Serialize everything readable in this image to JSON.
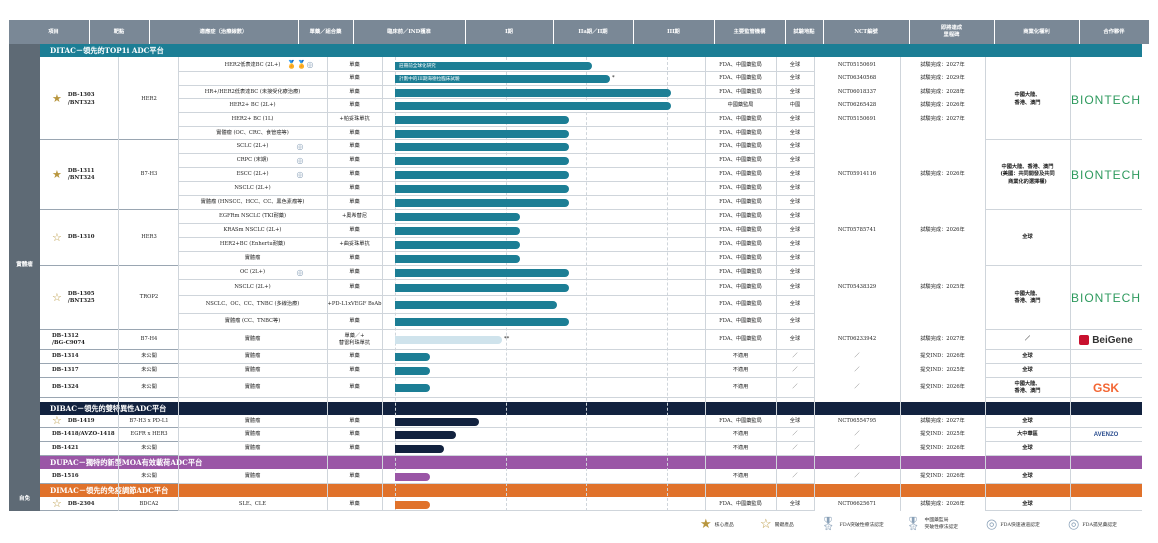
{
  "header": [
    "項目",
    "靶點",
    "適應症（治療線數）",
    "單藥／組合藥",
    "臨床前／IND獲准",
    "I期",
    "IIa期／II期",
    "III期",
    "主要監管機構",
    "試驗地點",
    "NCT編號",
    "即將達成\n里程碑",
    "商業化權利",
    "合作夥伴"
  ],
  "side_labels": [
    "實體瘤",
    "自免"
  ],
  "sections": [
    {
      "title": "DITAC－領先的TOP1i ADC平台",
      "color": "#1c7e95"
    },
    {
      "title": "DIBAC－領先的雙特異性ADC平台",
      "color": "#12223f"
    },
    {
      "title": "DUPAC－獨特的新型MOA有效載荷ADC平台",
      "color": "#9a56a6"
    },
    {
      "title": "DIMAC－領先的免疫調節ADC平台",
      "color": "#e0722b"
    }
  ],
  "rows": [
    {
      "ind": "HER2低表達BC (2L+)",
      "reg": "單藥",
      "bar": "註冊前全球化研究",
      "mark": "",
      "auth": "FDA、中國藥監局",
      "site": "全球",
      "nct": "NCT05150691",
      "ms": "試驗完成：2027年",
      "badges": "🏅🏅◎"
    },
    {
      "ind": "",
      "reg": "單藥",
      "bar": "計劃中的III期海德拉臨床試驗",
      "mark": "*",
      "auth": "FDA、中國藥監局",
      "site": "全球",
      "nct": "NCT06340568",
      "ms": "試驗完成：2029年",
      "badges": ""
    },
    {
      "ind": "HR+/HER2低表達BC (未接受化療治療)",
      "reg": "單藥",
      "bar": "",
      "mark": "",
      "auth": "FDA、中國藥監局",
      "site": "全球",
      "nct": "NCT06018337",
      "ms": "試驗完成：2028年",
      "badges": ""
    },
    {
      "ind": "HER2+ BC (2L+)",
      "reg": "單藥",
      "bar": "",
      "mark": "",
      "auth": "中國藥監局",
      "site": "中國",
      "nct": "NCT06265428",
      "ms": "試驗完成：2026年",
      "badges": ""
    },
    {
      "ind": "HER2+ BC (1L)",
      "reg": "+帕妥珠單抗",
      "bar": "",
      "mark": "",
      "auth": "FDA、中國藥監局",
      "site": "全球",
      "nct": "NCT05150691",
      "ms": "試驗完成：2027年",
      "badges": ""
    },
    {
      "ind": "實體瘤 (OC、CRC、食管癌等)",
      "reg": "單藥",
      "bar": "",
      "mark": "",
      "auth": "FDA、中國藥監局",
      "site": "全球",
      "nct": "",
      "ms": "",
      "badges": ""
    },
    {
      "ind": "SCLC (2L+)",
      "reg": "單藥",
      "bar": "",
      "mark": "",
      "auth": "FDA、中國藥監局",
      "site": "全球",
      "nct": "",
      "ms": "",
      "badges": "◎"
    },
    {
      "ind": "CRPC (末期)",
      "reg": "單藥",
      "bar": "",
      "mark": "",
      "auth": "FDA、中國藥監局",
      "site": "全球",
      "nct": "",
      "ms": "",
      "badges": "◎"
    },
    {
      "ind": "ESCC (2L+)",
      "reg": "單藥",
      "bar": "",
      "mark": "",
      "auth": "FDA、中國藥監局",
      "site": "全球",
      "nct": "NCT05914116",
      "ms": "試驗完成：2026年",
      "badges": "◎"
    },
    {
      "ind": "NSCLC (2L+)",
      "reg": "單藥",
      "bar": "",
      "mark": "",
      "auth": "FDA、中國藥監局",
      "site": "全球",
      "nct": "",
      "ms": "",
      "badges": ""
    },
    {
      "ind": "實體瘤 (HNSCC、HCC、CC、黑色素瘤等)",
      "reg": "單藥",
      "bar": "",
      "mark": "",
      "auth": "FDA、中國藥監局",
      "site": "全球",
      "nct": "",
      "ms": "",
      "badges": ""
    },
    {
      "ind": "EGFRm NSCLC (TKI耐藥)",
      "reg": "+奧希替尼",
      "bar": "",
      "mark": "",
      "auth": "FDA、中國藥監局",
      "site": "全球",
      "nct": "",
      "ms": "",
      "badges": ""
    },
    {
      "ind": "KRASm NSCLC (2L+)",
      "reg": "單藥",
      "bar": "",
      "mark": "",
      "auth": "FDA、中國藥監局",
      "site": "全球",
      "nct": "NCT05785741",
      "ms": "試驗完成：2026年",
      "badges": ""
    },
    {
      "ind": "HER2+BC (Enhertu耐藥)",
      "reg": "+曲妥珠單抗",
      "bar": "",
      "mark": "",
      "auth": "FDA、中國藥監局",
      "site": "全球",
      "nct": "",
      "ms": "",
      "badges": ""
    },
    {
      "ind": "實體瘤",
      "reg": "單藥",
      "bar": "",
      "mark": "",
      "auth": "FDA、中國藥監局",
      "site": "全球",
      "nct": "",
      "ms": "",
      "badges": ""
    },
    {
      "ind": "OC (2L+)",
      "reg": "單藥",
      "bar": "",
      "mark": "",
      "auth": "FDA、中國藥監局",
      "site": "全球",
      "nct": "",
      "ms": "",
      "badges": "◎"
    },
    {
      "ind": "NSCLC (2L+)",
      "reg": "單藥",
      "bar": "",
      "mark": "",
      "auth": "FDA、中國藥監局",
      "site": "全球",
      "nct": "NCT05438329",
      "ms": "試驗完成：2025年",
      "badges": ""
    },
    {
      "ind": "NSCLC、OC、CC、TNBC (多線治療)",
      "reg": "+PD-L1xVEGF BsAb",
      "bar": "",
      "mark": "",
      "auth": "FDA、中國藥監局",
      "site": "全球",
      "nct": "",
      "ms": "",
      "badges": ""
    },
    {
      "ind": "實體瘤 (CC、TNBC等)",
      "reg": "單藥",
      "bar": "",
      "mark": "",
      "auth": "FDA、中國藥監局",
      "site": "全球",
      "nct": "",
      "ms": "",
      "badges": ""
    },
    {
      "ind": "實體瘤",
      "reg": "單藥／+\n替雷利珠單抗",
      "bar": "",
      "mark": "**",
      "auth": "FDA、中國藥監局",
      "site": "全球",
      "nct": "NCT06233942",
      "ms": "試驗完成：2027年",
      "badges": ""
    },
    {
      "ind": "實體瘤",
      "reg": "單藥",
      "bar": "",
      "mark": "",
      "auth": "不適用",
      "site": "／",
      "nct": "／",
      "ms": "提交IND：2026年",
      "badges": ""
    },
    {
      "ind": "實體瘤",
      "reg": "單藥",
      "bar": "",
      "mark": "",
      "auth": "不適用",
      "site": "／",
      "nct": "／",
      "ms": "提交IND：2025年",
      "badges": ""
    },
    {
      "ind": "實體瘤",
      "reg": "單藥",
      "bar": "",
      "mark": "",
      "auth": "不適用",
      "site": "／",
      "nct": "／",
      "ms": "提交IND：2026年",
      "badges": ""
    },
    {
      "ind": "實體瘤",
      "reg": "單藥",
      "bar": "",
      "mark": "",
      "auth": "FDA、中國藥監局",
      "site": "全球",
      "nct": "NCT06554795",
      "ms": "試驗完成：2027年",
      "badges": ""
    },
    {
      "ind": "實體瘤",
      "reg": "單藥",
      "bar": "",
      "mark": "",
      "auth": "不適用",
      "site": "／",
      "nct": "／",
      "ms": "提交IND：2025年",
      "badges": ""
    },
    {
      "ind": "實體瘤",
      "reg": "單藥",
      "bar": "",
      "mark": "",
      "auth": "不適用",
      "site": "／",
      "nct": "／",
      "ms": "提交IND：2026年",
      "badges": ""
    },
    {
      "ind": "實體瘤",
      "reg": "單藥",
      "bar": "",
      "mark": "",
      "auth": "不適用",
      "site": "／",
      "nct": "／",
      "ms": "提交IND：2026年",
      "badges": ""
    },
    {
      "ind": "SLE、CLE",
      "reg": "單藥",
      "bar": "",
      "mark": "",
      "auth": "FDA、中國藥監局",
      "site": "全球",
      "nct": "NCT06625671",
      "ms": "試驗完成：2026年",
      "badges": ""
    }
  ],
  "progress": [
    {
      "phase": "I期-IIa期",
      "fill": 0.68,
      "color": "#1c7e95"
    },
    {
      "phase": "I期-IIa期",
      "fill": 0.74,
      "color": "#1c7e95"
    },
    {
      "phase": "III期",
      "fill": 0.95,
      "color": "#1c7e95"
    },
    {
      "phase": "III期",
      "fill": 0.95,
      "color": "#1c7e95"
    },
    {
      "phase": "IIa期",
      "fill": 0.6,
      "color": "#1c7e95"
    },
    {
      "phase": "IIa期",
      "fill": 0.6,
      "color": "#1c7e95"
    },
    {
      "phase": "IIa期",
      "fill": 0.6,
      "color": "#1c7e95"
    },
    {
      "phase": "IIa期",
      "fill": 0.6,
      "color": "#1c7e95"
    },
    {
      "phase": "IIa期",
      "fill": 0.6,
      "color": "#1c7e95"
    },
    {
      "phase": "IIa期",
      "fill": 0.6,
      "color": "#1c7e95"
    },
    {
      "phase": "IIa期",
      "fill": 0.6,
      "color": "#1c7e95"
    },
    {
      "phase": "I期",
      "fill": 0.43,
      "color": "#1c7e95"
    },
    {
      "phase": "I期",
      "fill": 0.43,
      "color": "#1c7e95"
    },
    {
      "phase": "I期",
      "fill": 0.43,
      "color": "#1c7e95"
    },
    {
      "phase": "I期",
      "fill": 0.43,
      "color": "#1c7e95"
    },
    {
      "phase": "IIa期",
      "fill": 0.6,
      "color": "#1c7e95"
    },
    {
      "phase": "IIa期",
      "fill": 0.6,
      "color": "#1c7e95"
    },
    {
      "phase": "I期",
      "fill": 0.56,
      "color": "#1c7e95"
    },
    {
      "phase": "IIa期",
      "fill": 0.6,
      "color": "#1c7e95"
    },
    {
      "phase": "I期",
      "fill": 0.37,
      "color": "#cfe3ec"
    },
    {
      "phase": "臨床前",
      "fill": 0.12,
      "color": "#1c7e95"
    },
    {
      "phase": "臨床前",
      "fill": 0.12,
      "color": "#1c7e95"
    },
    {
      "phase": "臨床前",
      "fill": 0.12,
      "color": "#1c7e95"
    },
    {
      "phase": "I期",
      "fill": 0.29,
      "color": "#12223f"
    },
    {
      "phase": "臨床前",
      "fill": 0.21,
      "color": "#12223f"
    },
    {
      "phase": "臨床前",
      "fill": 0.17,
      "color": "#12223f"
    },
    {
      "phase": "臨床前",
      "fill": 0.12,
      "color": "#9a56a6"
    },
    {
      "phase": "臨床前",
      "fill": 0.12,
      "color": "#e0722b"
    }
  ],
  "products": [
    {
      "name": "DB-1303\n/BNT323",
      "star": "★",
      "target": "HER2",
      "rights": "中國大陸、\n香港、澳門",
      "partner": "BIONTECH"
    },
    {
      "name": "DB-1311\n/BNT324",
      "star": "★",
      "target": "B7-H3",
      "rights": "中國大陸、香港、澳門\n(美國：共同開發及共同\n商業化的選擇權)",
      "partner": "BIONTECH"
    },
    {
      "name": "DB-1310",
      "star": "☆",
      "target": "HER3",
      "rights": "全球",
      "partner": ""
    },
    {
      "name": "DB-1305\n/BNT325",
      "star": "☆",
      "target": "TROP2",
      "rights": "中國大陸、\n香港、澳門",
      "partner": "BIONTECH"
    },
    {
      "name": "DB-1312\n/BG-C9074",
      "star": "",
      "target": "B7-H4",
      "rights": "／",
      "partner": "BeiGene"
    },
    {
      "name": "DB-1314",
      "star": "",
      "target": "未公開",
      "rights": "全球",
      "partner": ""
    },
    {
      "name": "DB-1317",
      "star": "",
      "target": "未公開",
      "rights": "全球",
      "partner": ""
    },
    {
      "name": "DB-1324",
      "star": "",
      "target": "未公開",
      "rights": "中國大陸、\n香港、澳門",
      "partner": "GSK"
    },
    {
      "name": "DB-1419",
      "star": "☆",
      "target": "B7-H3 x PD-L1",
      "rights": "全球",
      "partner": ""
    },
    {
      "name": "DB-1418/AVZO-1418",
      "star": "",
      "target": "EGFR x HER3",
      "rights": "大中華區",
      "partner": "AVENZO"
    },
    {
      "name": "DB-1421",
      "star": "",
      "target": "未公開",
      "rights": "全球",
      "partner": ""
    },
    {
      "name": "DB-1516",
      "star": "",
      "target": "未公開",
      "rights": "全球",
      "partner": ""
    },
    {
      "name": "DB-2304",
      "star": "☆",
      "target": "BDCA2",
      "rights": "全球",
      "partner": ""
    }
  ],
  "legend": [
    "核心產品",
    "關鍵產品",
    "FDA突破性療法認定",
    "中國藥監局\n突破性療法認定",
    "FDA快速通道認定",
    "FDA孤兒藥認定"
  ]
}
